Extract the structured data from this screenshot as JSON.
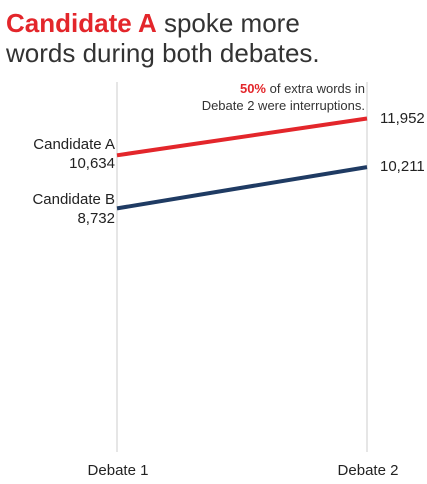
{
  "title": {
    "highlight": "Candidate A",
    "line1_rest": " spoke more",
    "line2": "words during both debates."
  },
  "annotation": {
    "highlight": "50%",
    "line1_rest": " of extra words in",
    "line2": "Debate 2 were interruptions."
  },
  "colors": {
    "candidate_a": "#e3262b",
    "candidate_b": "#1f3b63",
    "axis": "#cccccc"
  },
  "chart_data": {
    "type": "line",
    "categories": [
      "Debate 1",
      "Debate 2"
    ],
    "series": [
      {
        "name": "Candidate A",
        "values": [
          10634,
          11952
        ],
        "labels": [
          "10,634",
          "11,952"
        ]
      },
      {
        "name": "Candidate B",
        "values": [
          8732,
          10211
        ],
        "labels": [
          "8,732",
          "10,211"
        ]
      }
    ],
    "ylim": [
      0,
      16200
    ],
    "grid": false,
    "legend": "none"
  }
}
